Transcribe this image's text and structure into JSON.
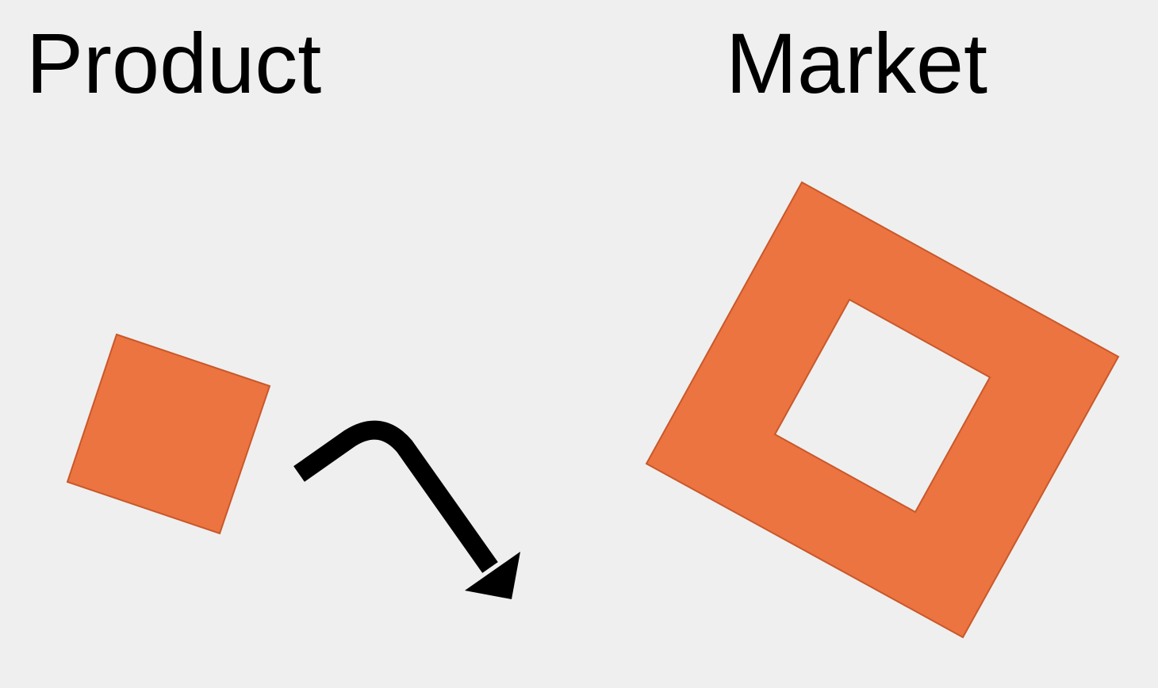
{
  "labels": {
    "product": "Product",
    "market": "Market"
  },
  "colors": {
    "background": "#efefef",
    "shape_fill": "#ec7441",
    "shape_stroke": "#c9582a",
    "arrow": "#000000",
    "text": "#000000"
  },
  "shapes": {
    "product_shape": "solid-square",
    "market_shape": "square-frame-with-hole",
    "connector": "bent-arrow"
  }
}
